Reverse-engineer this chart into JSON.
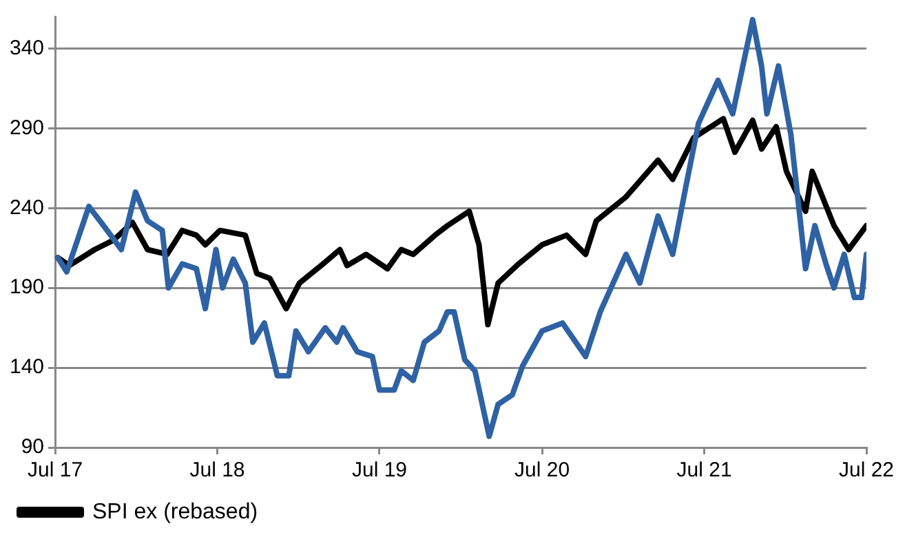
{
  "chart_data": {
    "type": "line",
    "xlim": [
      "2017-07-01",
      "2022-07-01"
    ],
    "xticks": [
      {
        "value": "2017-07-01",
        "label": "Jul 17"
      },
      {
        "value": "2018-07-01",
        "label": "Jul 18"
      },
      {
        "value": "2019-07-01",
        "label": "Jul 19"
      },
      {
        "value": "2020-07-01",
        "label": "Jul 20"
      },
      {
        "value": "2021-07-01",
        "label": "Jul 21"
      },
      {
        "value": "2022-07-01",
        "label": "Jul 22"
      }
    ],
    "ylim": [
      90,
      360
    ],
    "yticks": [
      90,
      140,
      190,
      240,
      290,
      340
    ],
    "grid": "y",
    "legend": "bottom",
    "marker": "none",
    "line_style": "solid",
    "series": [
      {
        "color": "#2e62a4",
        "x": [
          "2017-07-07",
          "2017-07-27",
          "2017-09-15",
          "2017-10-18",
          "2017-11-27",
          "2017-12-29",
          "2018-01-25",
          "2018-02-27",
          "2018-03-13",
          "2018-04-13",
          "2018-05-15",
          "2018-06-04",
          "2018-06-28",
          "2018-07-13",
          "2018-08-06",
          "2018-09-02",
          "2018-09-19",
          "2018-10-15",
          "2018-11-13",
          "2018-12-09",
          "2018-12-25",
          "2019-01-22",
          "2019-03-01",
          "2019-03-27",
          "2019-04-10",
          "2019-05-12",
          "2019-06-15",
          "2019-07-01",
          "2019-08-03",
          "2019-08-19",
          "2019-09-15",
          "2019-10-10",
          "2019-11-12",
          "2019-12-01",
          "2019-12-16",
          "2020-01-09",
          "2020-02-01",
          "2020-03-04",
          "2020-03-24",
          "2020-04-25",
          "2020-05-18",
          "2020-07-01",
          "2020-08-16",
          "2020-10-07",
          "2020-11-09",
          "2021-01-06",
          "2021-02-06",
          "2021-03-19",
          "2021-04-21",
          "2021-05-21",
          "2021-06-18",
          "2021-08-01",
          "2021-09-03",
          "2021-10-18",
          "2021-11-07",
          "2021-11-19",
          "2021-12-15",
          "2022-01-12",
          "2022-02-14",
          "2022-03-07",
          "2022-04-01",
          "2022-04-19",
          "2022-05-12",
          "2022-06-04",
          "2022-06-20",
          "2022-07-01"
        ],
        "values": [
          209,
          200,
          241,
          229,
          214,
          250,
          232,
          226,
          190,
          205,
          202,
          177,
          214,
          190,
          208,
          193,
          156,
          168,
          135,
          135,
          163,
          150,
          165,
          156,
          165,
          150,
          147,
          126,
          126,
          138,
          132,
          156,
          163,
          175,
          175,
          145,
          138,
          97,
          117,
          123,
          141,
          163,
          168,
          147,
          175,
          211,
          193,
          235,
          211,
          254,
          293,
          320,
          299,
          358,
          329,
          299,
          329,
          286,
          202,
          229,
          205,
          190,
          211,
          184,
          184,
          211
        ]
      },
      {
        "name": "SPI ex (rebased)",
        "color": "#000000",
        "x": [
          "2017-07-07",
          "2017-08-02",
          "2017-09-28",
          "2017-11-10",
          "2017-12-22",
          "2018-01-25",
          "2018-03-10",
          "2018-04-13",
          "2018-05-15",
          "2018-06-04",
          "2018-07-07",
          "2018-09-02",
          "2018-09-28",
          "2018-10-27",
          "2018-12-03",
          "2019-01-02",
          "2019-02-24",
          "2019-04-03",
          "2019-04-19",
          "2019-06-01",
          "2019-07-19",
          "2019-08-19",
          "2019-09-15",
          "2019-11-03",
          "2019-12-01",
          "2020-01-19",
          "2020-02-10",
          "2020-03-01",
          "2020-03-24",
          "2020-05-09",
          "2020-07-01",
          "2020-08-25",
          "2020-10-07",
          "2020-10-31",
          "2021-01-06",
          "2021-03-19",
          "2021-04-21",
          "2021-06-07",
          "2021-08-13",
          "2021-09-08",
          "2021-10-18",
          "2021-11-07",
          "2021-12-10",
          "2022-01-02",
          "2022-02-14",
          "2022-03-01",
          "2022-04-19",
          "2022-05-22",
          "2022-07-01"
        ],
        "values": [
          209,
          204,
          214,
          220,
          231,
          214,
          211,
          226,
          223,
          217,
          226,
          223,
          199,
          196,
          177,
          193,
          205,
          214,
          204,
          211,
          202,
          214,
          211,
          223,
          229,
          238,
          217,
          167,
          193,
          205,
          217,
          223,
          211,
          232,
          247,
          270,
          258,
          284,
          296,
          275,
          295,
          277,
          291,
          263,
          238,
          263,
          229,
          214,
          229
        ]
      }
    ]
  }
}
